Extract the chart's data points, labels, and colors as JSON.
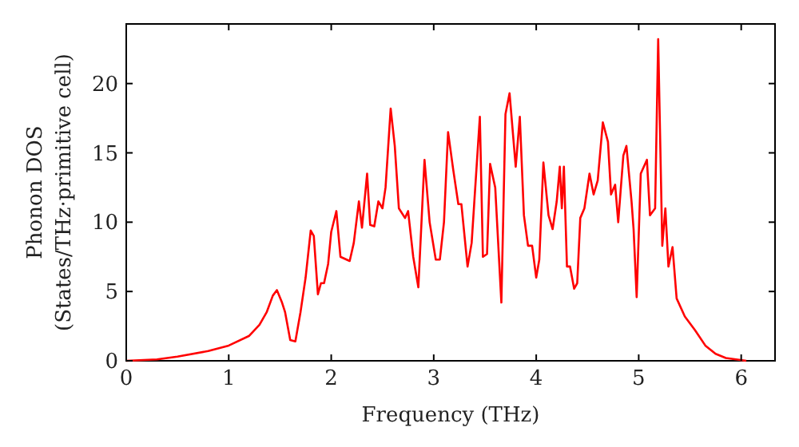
{
  "chart_data": {
    "type": "line",
    "xlabel": "Frequency (THz)",
    "ylabel": "Phonon DOS\n(States/THz·primitive cell)",
    "xlim": [
      0,
      6.33
    ],
    "ylim": [
      0,
      24.3
    ],
    "xticks": [
      0,
      1,
      2,
      3,
      4,
      5,
      6
    ],
    "yticks": [
      0,
      5,
      10,
      15,
      20
    ],
    "grid": false,
    "marker": "none",
    "line_style": "solid",
    "series": [
      {
        "color": "#ff0000",
        "x": [
          0,
          0.3,
          0.5,
          0.8,
          1.0,
          1.2,
          1.3,
          1.37,
          1.43,
          1.47,
          1.52,
          1.55,
          1.6,
          1.65,
          1.7,
          1.75,
          1.8,
          1.83,
          1.87,
          1.9,
          1.93,
          1.97,
          2.0,
          2.05,
          2.09,
          2.18,
          2.22,
          2.27,
          2.3,
          2.35,
          2.38,
          2.42,
          2.46,
          2.5,
          2.53,
          2.58,
          2.62,
          2.66,
          2.72,
          2.75,
          2.8,
          2.85,
          2.91,
          2.96,
          3.02,
          3.06,
          3.1,
          3.14,
          3.19,
          3.24,
          3.27,
          3.33,
          3.37,
          3.45,
          3.48,
          3.52,
          3.55,
          3.6,
          3.66,
          3.7,
          3.74,
          3.8,
          3.84,
          3.88,
          3.92,
          3.96,
          4.0,
          4.03,
          4.07,
          4.12,
          4.16,
          4.2,
          4.23,
          4.25,
          4.27,
          4.3,
          4.33,
          4.37,
          4.4,
          4.43,
          4.47,
          4.52,
          4.56,
          4.6,
          4.65,
          4.7,
          4.73,
          4.77,
          4.8,
          4.85,
          4.88,
          4.93,
          4.95,
          4.98,
          5.02,
          5.08,
          5.11,
          5.16,
          5.19,
          5.23,
          5.26,
          5.29,
          5.33,
          5.37,
          5.45,
          5.55,
          5.65,
          5.75,
          5.85,
          5.95,
          6.05
        ],
        "values": [
          0,
          0.1,
          0.3,
          0.7,
          1.1,
          1.8,
          2.6,
          3.5,
          4.7,
          5.1,
          4.2,
          3.5,
          1.5,
          1.4,
          3.5,
          6,
          9.4,
          9,
          4.8,
          5.6,
          5.6,
          7,
          9.3,
          10.8,
          7.5,
          7.2,
          8.5,
          11.5,
          9.6,
          13.5,
          9.8,
          9.7,
          11.5,
          11,
          12.5,
          18.2,
          15.5,
          11,
          10.3,
          10.8,
          7.5,
          5.3,
          14.5,
          10,
          7.3,
          7.3,
          10,
          16.5,
          13.8,
          11.3,
          11.3,
          6.8,
          8.5,
          17.6,
          7.5,
          7.7,
          14.2,
          12.5,
          4.2,
          17.8,
          19.3,
          14,
          17.6,
          10.5,
          8.3,
          8.3,
          6,
          7.3,
          14.3,
          10.5,
          9.5,
          11.5,
          14,
          11,
          14,
          6.8,
          6.8,
          5.2,
          5.6,
          10.3,
          11,
          13.5,
          12,
          13,
          17.2,
          15.8,
          12,
          12.7,
          10,
          14.8,
          15.5,
          11.5,
          9.5,
          4.6,
          13.5,
          14.5,
          10.5,
          11,
          23.2,
          8.3,
          11,
          6.8,
          8.2,
          4.5,
          3.2,
          2.2,
          1.1,
          0.5,
          0.2,
          0.1,
          0
        ]
      }
    ]
  }
}
